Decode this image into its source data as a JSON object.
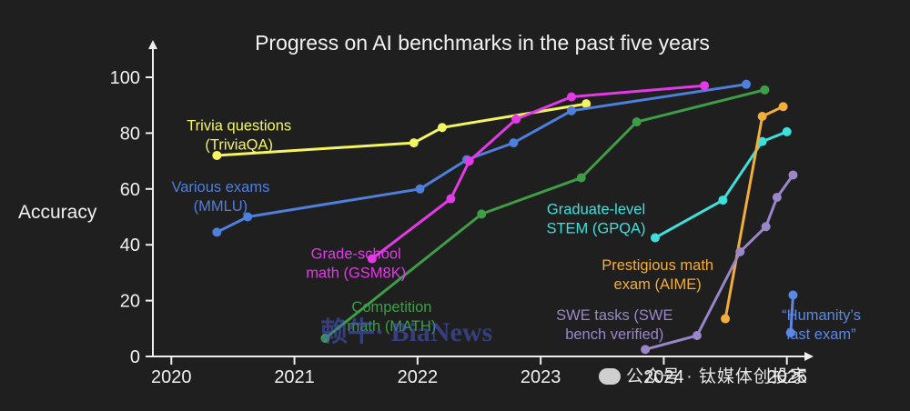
{
  "chart_data": {
    "type": "line",
    "title": "Progress on AI benchmarks in the past five years",
    "ylabel": "Accuracy",
    "xlabel": "",
    "xlim": [
      2019.85,
      2025.15
    ],
    "ylim": [
      0,
      100
    ],
    "x_ticks": [
      2020,
      2021,
      2022,
      2023,
      2024,
      2025
    ],
    "y_ticks": [
      0,
      20,
      40,
      60,
      80,
      100
    ],
    "grid": false,
    "series": [
      {
        "name": "Trivia questions (TriviaQA)",
        "label_lines": [
          "Trivia questions",
          "(TriviaQA)"
        ],
        "color": "#f5f562",
        "x": [
          2020.37,
          2021.97,
          2022.2,
          2023.37
        ],
        "y": [
          72,
          76.5,
          82,
          90.5
        ]
      },
      {
        "name": "Various exams (MMLU)",
        "label_lines": [
          "Various exams",
          "(MMLU)"
        ],
        "color": "#4f7fdc",
        "x": [
          2020.37,
          2020.62,
          2022.02,
          2022.4,
          2022.78,
          2023.25,
          2024.67
        ],
        "y": [
          44.5,
          50,
          60,
          70.5,
          76.5,
          88,
          97.5
        ]
      },
      {
        "name": "Grade-school math (GSM8K)",
        "label_lines": [
          "Grade-school",
          "math (GSM8K)"
        ],
        "color": "#e23ae6",
        "x": [
          2021.63,
          2022.27,
          2022.42,
          2022.8,
          2023.25,
          2024.33
        ],
        "y": [
          35,
          56.5,
          70,
          85,
          93,
          97
        ]
      },
      {
        "name": "Competition math (MATH)",
        "label_lines": [
          "Competition",
          "math (MATH)"
        ],
        "color": "#3e9e48",
        "x": [
          2021.25,
          2022.52,
          2023.33,
          2023.78,
          2024.82
        ],
        "y": [
          6.5,
          51,
          64,
          84,
          95.5
        ]
      },
      {
        "name": "Graduate-level STEM (GPQA)",
        "label_lines": [
          "Graduate-level",
          "STEM (GPQA)"
        ],
        "color": "#3ee0dc",
        "x": [
          2023.93,
          2024.48,
          2024.8,
          2025.0
        ],
        "y": [
          42.5,
          56,
          77,
          80.5
        ]
      },
      {
        "name": "Prestigious math exam (AIME)",
        "label_lines": [
          "Prestigious math",
          "exam (AIME)"
        ],
        "color": "#f2ae38",
        "x": [
          2024.5,
          2024.8,
          2024.97
        ],
        "y": [
          13.5,
          86,
          89.5
        ]
      },
      {
        "name": "SWE tasks (SWE bench verified)",
        "label_lines": [
          "SWE tasks (SWE",
          "bench verified)"
        ],
        "color": "#9a86c9",
        "x": [
          2023.85,
          2024.27,
          2024.62,
          2024.83,
          2024.92,
          2025.05
        ],
        "y": [
          2.5,
          7.5,
          37.5,
          46.5,
          57,
          65
        ]
      },
      {
        "name": "“Humanity’s last exam”",
        "label_lines": [
          "“Humanity’s",
          "last exam”"
        ],
        "color": "#5b88e6",
        "x": [
          2025.03,
          2025.05
        ],
        "y": [
          8.5,
          22
        ]
      }
    ],
    "series_labels": [
      {
        "series": 0,
        "anchor": "middle",
        "x": 2020.55,
        "y": 81
      },
      {
        "series": 1,
        "anchor": "middle",
        "x": 2020.4,
        "y": 59
      },
      {
        "series": 2,
        "anchor": "middle",
        "x": 2021.5,
        "y": 35
      },
      {
        "series": 3,
        "anchor": "middle",
        "x": 2021.79,
        "y": 16
      },
      {
        "series": 4,
        "anchor": "middle",
        "x": 2023.45,
        "y": 51
      },
      {
        "series": 5,
        "anchor": "middle",
        "x": 2023.95,
        "y": 31
      },
      {
        "series": 6,
        "anchor": "middle",
        "x": 2023.6,
        "y": 13
      },
      {
        "series": 7,
        "anchor": "middle",
        "x": 2025.28,
        "y": 13
      }
    ]
  },
  "watermarks": {
    "left": "赖牛· BiaNews",
    "right": "公众号 · 钛媒体创投家"
  }
}
